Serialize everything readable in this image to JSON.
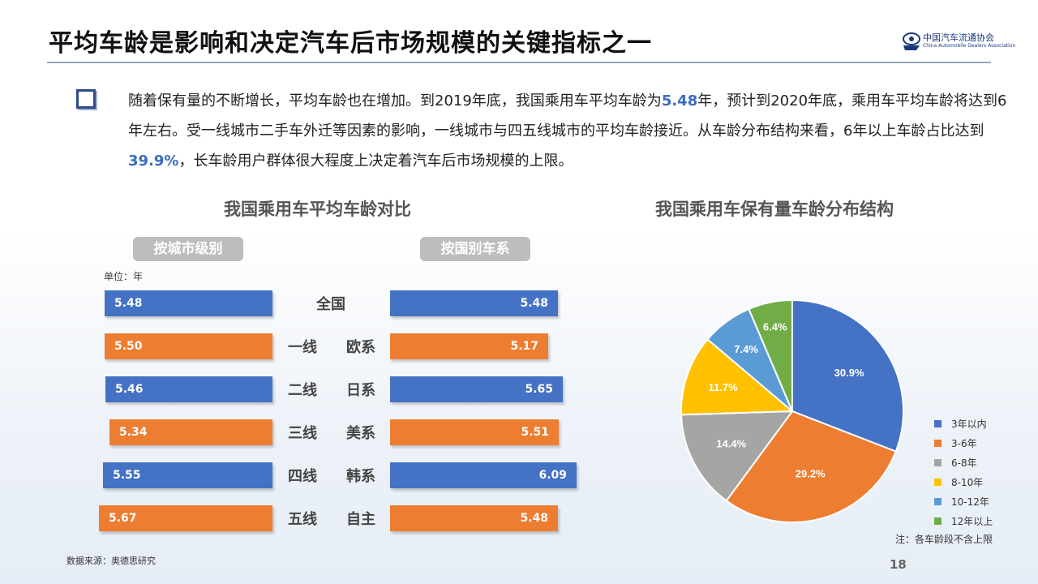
{
  "slide": {
    "title": "平均车龄是影响和决定汽车后市场规模的关键指标之一",
    "logo_cn": "中国汽车流通协会",
    "logo_en": "China Automobile Dealers Association",
    "page_number": "18",
    "source": "数据来源：奥德思研究"
  },
  "paragraph": {
    "part1": "随着保有量的不断增长，平均车龄也在增加。到2019年底，我国乘用车平均车龄为",
    "hl1": "5.48",
    "part2": "年，预计到2020年底，乘用车平均车龄将达到6年左右。受一线城市二手车外迁等因素的影响，一线城市与四五线城市的平均车龄接近。从车龄分布结构来看，6年以上车龄占比达到",
    "hl2": "39.9%",
    "part3": "，长车龄用户群体很大程度上决定着汽车后市场规模的上限。"
  },
  "colors": {
    "blue": "#4472c4",
    "orange": "#ed7d31",
    "gray": "#a5a5a5",
    "yellow": "#ffc000",
    "lightblue": "#5b9bd5",
    "green": "#70ad47",
    "highlight": "#3b6bbf"
  },
  "chart_data": [
    {
      "type": "bar",
      "title": "我国乘用车平均车龄对比",
      "subtitle": "按城市级别",
      "unit": "单位：年",
      "categories": [
        "全国",
        "一线",
        "二线",
        "三线",
        "四线",
        "五线"
      ],
      "values": [
        5.48,
        5.5,
        5.46,
        5.34,
        5.55,
        5.67
      ],
      "colors": [
        "#4472c4",
        "#ed7d31",
        "#4472c4",
        "#ed7d31",
        "#4472c4",
        "#ed7d31"
      ]
    },
    {
      "type": "bar",
      "title": "我国乘用车平均车龄对比",
      "subtitle": "按国别车系",
      "categories": [
        "全国",
        "欧系",
        "日系",
        "美系",
        "韩系",
        "自主"
      ],
      "values": [
        5.48,
        5.17,
        5.65,
        5.51,
        6.09,
        5.48
      ],
      "colors": [
        "#4472c4",
        "#ed7d31",
        "#4472c4",
        "#ed7d31",
        "#4472c4",
        "#ed7d31"
      ]
    },
    {
      "type": "pie",
      "title": "我国乘用车保有量车龄分布结构",
      "categories": [
        "3年以内",
        "3-6年",
        "6-8年",
        "8-10年",
        "10-12年",
        "12年以上"
      ],
      "values": [
        30.9,
        29.2,
        14.4,
        11.7,
        7.4,
        6.4
      ],
      "labels": [
        "30.9%",
        "29.2%",
        "14.4%",
        "11.7%",
        "7.4%",
        "6.4%"
      ],
      "colors": [
        "#4472c4",
        "#ed7d31",
        "#a5a5a5",
        "#ffc000",
        "#5b9bd5",
        "#70ad47"
      ],
      "legend_position": "right",
      "note": "注：各车龄段不含上限"
    }
  ]
}
